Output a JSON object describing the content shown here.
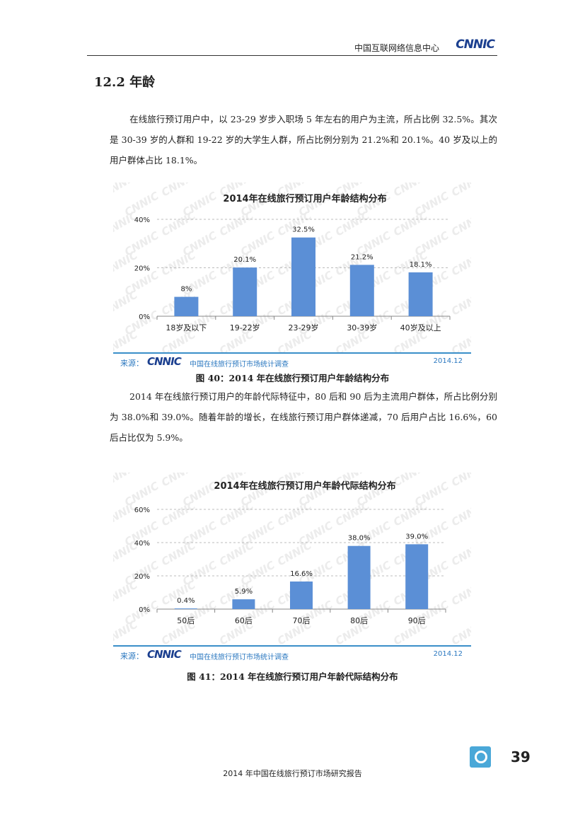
{
  "header": {
    "org": "中国互联网络信息中心",
    "logo": "CNNIC"
  },
  "section": {
    "title": "12.2  年龄"
  },
  "paragraph1": {
    "text": "在线旅行预订用户中，以 23-29 岁步入职场 5 年左右的用户为主流，所占比例 32.5%。其次是 30-39 岁的人群和 19-22 岁的大学生人群，所占比例分别为 21.2%和 20.1%。40 岁及以上的用户群体占比 18.1%。"
  },
  "paragraph2": {
    "text": "2014 年在线旅行预订用户的年龄代际特征中，80 后和 90 后为主流用户群体，所占比例分别为 38.0%和 39.0%。随着年龄的增长，在线旅行预订用户群体递减，70 后用户占比 16.6%，60 后占比仅为 5.9%。"
  },
  "chart_data": [
    {
      "type": "bar",
      "title": "2014年在线旅行预订用户年龄结构分布",
      "categories": [
        "18岁及以下",
        "19-22岁",
        "23-29岁",
        "30-39岁",
        "40岁及以上"
      ],
      "values": [
        8,
        20.1,
        32.5,
        21.2,
        18.1
      ],
      "labels": [
        "8%",
        "20.1%",
        "32.5%",
        "21.2%",
        "18.1%"
      ],
      "ylim": [
        0,
        40
      ],
      "yticks": [
        0,
        20,
        40
      ],
      "ytick_labels": [
        "0%",
        "20%",
        "40%"
      ],
      "bar_color": "#5b8fd6",
      "grid": true
    },
    {
      "type": "bar",
      "title": "2014年在线旅行预订用户年龄代际结构分布",
      "categories": [
        "50后",
        "60后",
        "70后",
        "80后",
        "90后"
      ],
      "values": [
        0.4,
        5.9,
        16.6,
        38.0,
        39.0
      ],
      "labels": [
        "0.4%",
        "5.9%",
        "16.6%",
        "38.0%",
        "39.0%"
      ],
      "ylim": [
        0,
        60
      ],
      "yticks": [
        0,
        20,
        40,
        60
      ],
      "ytick_labels": [
        "0%",
        "20%",
        "40%",
        "60%"
      ],
      "bar_color": "#5b8fd6",
      "grid": true
    }
  ],
  "source": {
    "label": "来源：",
    "logo": "CNNIC",
    "text": "中国在线旅行预订市场统计调查",
    "date": "2014.12"
  },
  "captions": {
    "fig40": "图  40：2014 年在线旅行预订用户年龄结构分布",
    "fig41": "图  41：2014 年在线旅行预订用户年龄代际结构分布"
  },
  "page_number": "39",
  "footer": "2014 年中国在线旅行预订市场研究报告"
}
